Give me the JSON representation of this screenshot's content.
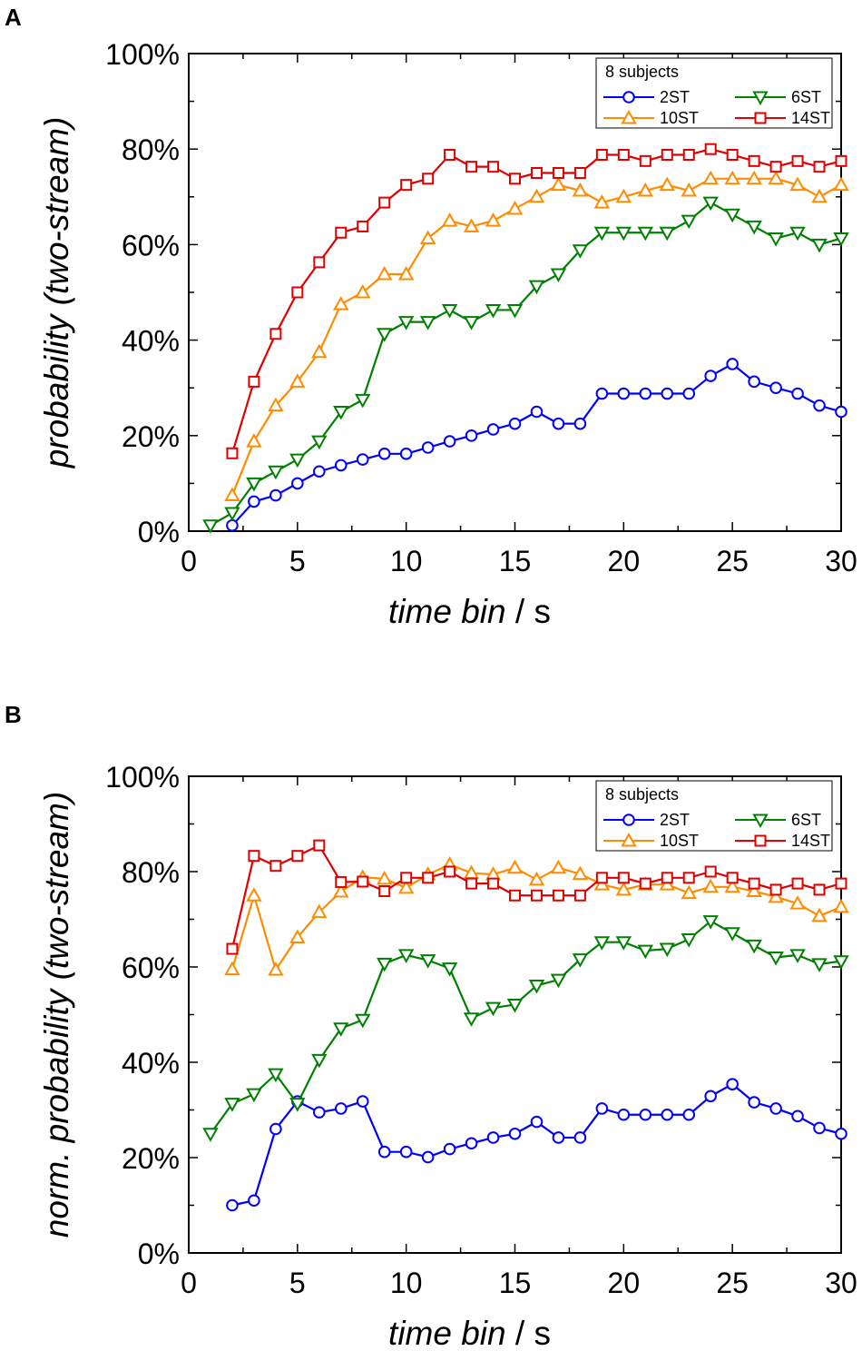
{
  "chart_data": [
    {
      "panel": "A",
      "type": "line",
      "xlabel_italic": "time bin",
      "xlabel_unit": " / s",
      "ylabel": "probability (two-stream)",
      "xlim": [
        0,
        30
      ],
      "ylim": [
        0,
        100
      ],
      "xticks": [
        0,
        5,
        10,
        15,
        20,
        25,
        30
      ],
      "yticks": [
        0,
        20,
        40,
        60,
        80,
        100
      ],
      "ytick_suffix": "%",
      "legend": {
        "title": "8 subjects",
        "position": "top-right",
        "order": [
          "2ST",
          "6ST",
          "10ST",
          "14ST"
        ]
      },
      "series": [
        {
          "name": "2ST",
          "color": "#0000ff",
          "marker": "circle",
          "x": [
            2,
            3,
            4,
            5,
            6,
            7,
            8,
            9,
            10,
            11,
            12,
            13,
            14,
            15,
            16,
            17,
            18,
            19,
            20,
            21,
            22,
            23,
            24,
            25,
            26,
            27,
            28,
            29,
            30
          ],
          "values": [
            1.2,
            6.2,
            7.5,
            10,
            12.5,
            13.8,
            15,
            16.2,
            16.2,
            17.5,
            18.8,
            20,
            21.3,
            22.5,
            25,
            22.5,
            22.5,
            28.8,
            28.8,
            28.8,
            28.8,
            28.8,
            32.5,
            35,
            31.3,
            30,
            28.8,
            26.3,
            25
          ]
        },
        {
          "name": "6ST",
          "color": "#008000",
          "marker": "triangle-down",
          "x": [
            1,
            2,
            3,
            4,
            5,
            6,
            7,
            8,
            9,
            10,
            11,
            12,
            13,
            14,
            15,
            16,
            17,
            18,
            19,
            20,
            21,
            22,
            23,
            24,
            25,
            26,
            27,
            28,
            29,
            30
          ],
          "values": [
            1.2,
            3.8,
            10,
            12.5,
            15,
            18.8,
            25,
            27.5,
            41.3,
            43.8,
            43.8,
            46.3,
            43.8,
            46.3,
            46.3,
            51.3,
            53.8,
            58.8,
            62.5,
            62.5,
            62.5,
            62.5,
            65,
            68.8,
            66.3,
            63.8,
            61.3,
            62.5,
            60,
            61.3
          ]
        },
        {
          "name": "10ST",
          "color": "#ff8c00",
          "marker": "triangle-up",
          "x": [
            2,
            3,
            4,
            5,
            6,
            7,
            8,
            9,
            10,
            11,
            12,
            13,
            14,
            15,
            16,
            17,
            18,
            19,
            20,
            21,
            22,
            23,
            24,
            25,
            26,
            27,
            28,
            29,
            30
          ],
          "values": [
            7.5,
            18.8,
            26.3,
            31.3,
            37.5,
            47.5,
            50,
            53.8,
            53.8,
            61.3,
            65,
            63.8,
            65,
            67.5,
            70,
            72.5,
            71.3,
            68.8,
            70,
            71.3,
            72.5,
            71.3,
            73.8,
            73.8,
            73.8,
            73.8,
            72.5,
            70,
            72.5
          ]
        },
        {
          "name": "14ST",
          "color": "#e00000",
          "marker": "square",
          "x": [
            2,
            3,
            4,
            5,
            6,
            7,
            8,
            9,
            10,
            11,
            12,
            13,
            14,
            15,
            16,
            17,
            18,
            19,
            20,
            21,
            22,
            23,
            24,
            25,
            26,
            27,
            28,
            29,
            30
          ],
          "values": [
            16.3,
            31.3,
            41.3,
            50,
            56.3,
            62.5,
            63.8,
            68.8,
            72.5,
            73.8,
            78.8,
            76.3,
            76.3,
            73.8,
            75,
            75,
            75,
            78.8,
            78.8,
            77.5,
            78.8,
            78.8,
            80,
            78.8,
            77.5,
            76.3,
            77.5,
            76.3,
            77.5
          ]
        }
      ]
    },
    {
      "panel": "B",
      "type": "line",
      "xlabel_italic": "time bin",
      "xlabel_unit": " / s",
      "ylabel": "norm. probability (two-stream)",
      "xlim": [
        0,
        30
      ],
      "ylim": [
        0,
        100
      ],
      "xticks": [
        0,
        5,
        10,
        15,
        20,
        25,
        30
      ],
      "yticks": [
        0,
        20,
        40,
        60,
        80,
        100
      ],
      "ytick_suffix": "%",
      "legend": {
        "title": "8 subjects",
        "position": "top-right",
        "order": [
          "2ST",
          "6ST",
          "10ST",
          "14ST"
        ]
      },
      "series": [
        {
          "name": "2ST",
          "color": "#0000ff",
          "marker": "circle",
          "x": [
            2,
            3,
            4,
            5,
            6,
            7,
            8,
            9,
            10,
            11,
            12,
            13,
            14,
            15,
            16,
            17,
            18,
            19,
            20,
            21,
            22,
            23,
            24,
            25,
            26,
            27,
            28,
            29,
            30
          ],
          "values": [
            10,
            11,
            26,
            31.8,
            29.5,
            30.3,
            31.8,
            21.2,
            21.2,
            20.1,
            21.8,
            23,
            24.2,
            25,
            27.5,
            24.2,
            24.2,
            30.3,
            29,
            29,
            29,
            29,
            32.9,
            35.4,
            31.6,
            30.3,
            28.7,
            26.2,
            25
          ]
        },
        {
          "name": "6ST",
          "color": "#008000",
          "marker": "triangle-down",
          "x": [
            1,
            2,
            3,
            4,
            5,
            6,
            7,
            8,
            9,
            10,
            11,
            12,
            13,
            14,
            15,
            16,
            17,
            18,
            19,
            20,
            21,
            22,
            23,
            24,
            25,
            26,
            27,
            28,
            29,
            30
          ],
          "values": [
            25,
            31.3,
            33.3,
            37.5,
            31.3,
            40.5,
            47.1,
            48.9,
            60.7,
            62.5,
            61.4,
            59.7,
            49.2,
            51.4,
            52.1,
            56.1,
            57.3,
            61.6,
            65.2,
            65.2,
            63.4,
            63.8,
            65.8,
            69.6,
            67.1,
            64.5,
            62,
            62.5,
            60.6,
            61.2
          ]
        },
        {
          "name": "10ST",
          "color": "#ff8c00",
          "marker": "triangle-up",
          "x": [
            2,
            3,
            4,
            5,
            6,
            7,
            8,
            9,
            10,
            11,
            12,
            13,
            14,
            15,
            16,
            17,
            18,
            19,
            20,
            21,
            22,
            23,
            24,
            25,
            26,
            27,
            28,
            29,
            30
          ],
          "values": [
            59.5,
            75,
            59.4,
            66.2,
            71.5,
            75.8,
            78.8,
            78.5,
            76.6,
            79.4,
            81.5,
            79.7,
            79.4,
            80.8,
            78.3,
            80.8,
            79.5,
            77.3,
            76.2,
            77.3,
            77.3,
            75.5,
            76.8,
            76.8,
            75.9,
            74.7,
            73.3,
            70.7,
            72.6
          ]
        },
        {
          "name": "14ST",
          "color": "#e00000",
          "marker": "square",
          "x": [
            2,
            3,
            4,
            5,
            6,
            7,
            8,
            9,
            10,
            11,
            12,
            13,
            14,
            15,
            16,
            17,
            18,
            19,
            20,
            21,
            22,
            23,
            24,
            25,
            26,
            27,
            28,
            29,
            30
          ],
          "values": [
            63.8,
            83.3,
            81.2,
            83.3,
            85.5,
            77.8,
            77.9,
            75.9,
            78.7,
            78.7,
            80,
            77.5,
            77.5,
            75,
            75,
            75,
            75,
            78.7,
            78.7,
            77.5,
            78.7,
            78.7,
            80,
            78.7,
            77.5,
            76.2,
            77.5,
            76.2,
            77.5
          ]
        }
      ]
    }
  ]
}
